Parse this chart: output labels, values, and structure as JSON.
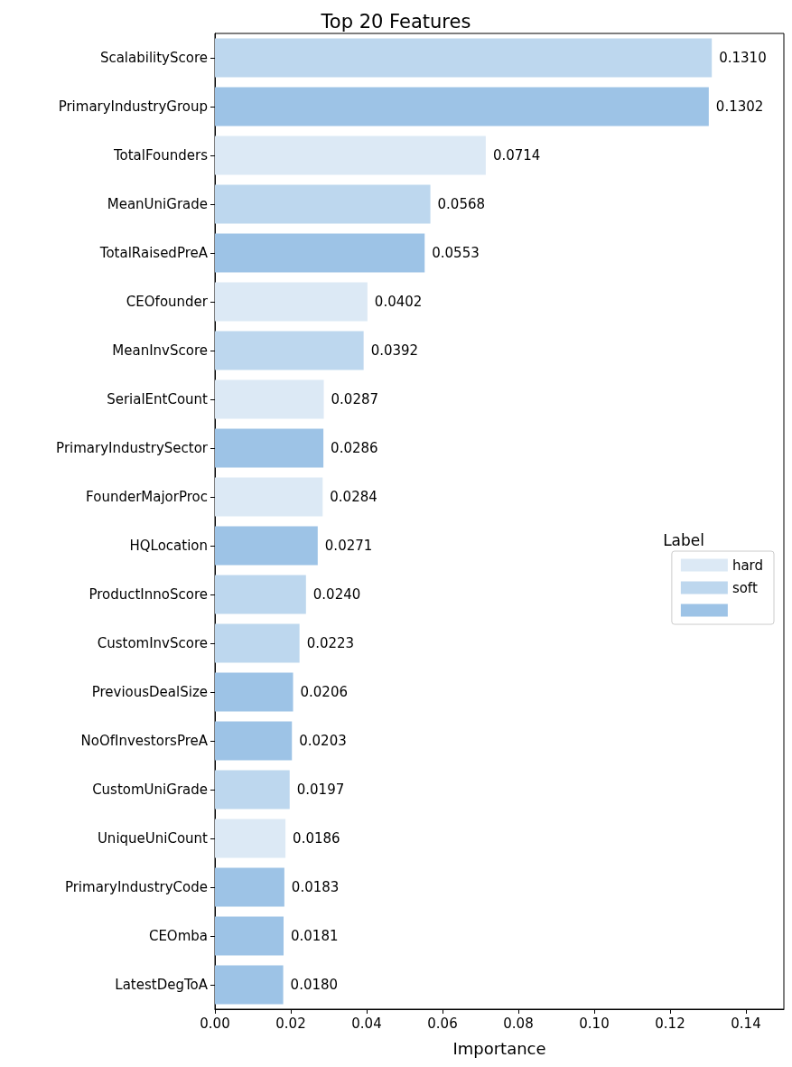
{
  "chart_data": {
    "type": "bar",
    "orientation": "horizontal",
    "stacked": true,
    "title": "Top 20 Features",
    "xlabel": "Importance",
    "legend_title": "Label",
    "legend": "right",
    "grid": false,
    "categories": [
      "ScalabilityScore",
      "PrimaryIndustryGroup",
      "TotalFounders",
      "MeanUniGrade",
      "TotalRaisedPreA",
      "CEOfounder",
      "MeanInvScore",
      "SerialEntCount",
      "PrimaryIndustrySector",
      "FounderMajorProc",
      "HQLocation",
      "ProductInnoScore",
      "CustomInvScore",
      "PreviousDealSize",
      "NoOfInvestorsPreA",
      "CustomUniGrade",
      "UniqueUniCount",
      "PrimaryIndustryCode",
      "CEOmba",
      "LatestDegToA"
    ],
    "xlim": [
      0,
      0.15
    ],
    "xticks": [
      {
        "value": 0,
        "label": "0.00"
      },
      {
        "value": 0.02,
        "label": "0.02"
      },
      {
        "value": 0.04,
        "label": "0.04"
      },
      {
        "value": 0.06,
        "label": "0.06"
      },
      {
        "value": 0.08,
        "label": "0.08"
      },
      {
        "value": 0.1,
        "label": "0.10"
      },
      {
        "value": 0.12,
        "label": "0.12"
      },
      {
        "value": 0.14,
        "label": "0.14"
      }
    ],
    "series": [
      {
        "name": "hard",
        "color": "#dce9f5",
        "values": [
          null,
          null,
          0.0714,
          null,
          null,
          0.0402,
          null,
          0.0287,
          null,
          0.0284,
          null,
          null,
          null,
          null,
          null,
          null,
          0.0186,
          null,
          null,
          null
        ],
        "value_labels": [
          null,
          null,
          "0.0714",
          null,
          null,
          "0.0402",
          null,
          "0.0287",
          null,
          "0.0284",
          null,
          null,
          null,
          null,
          null,
          null,
          "0.0186",
          null,
          null,
          null
        ]
      },
      {
        "name": "soft",
        "color": "#bdd7ee",
        "values": [
          0.131,
          null,
          null,
          0.0568,
          null,
          null,
          0.0392,
          null,
          null,
          null,
          null,
          0.024,
          0.0223,
          null,
          null,
          0.0197,
          null,
          null,
          null,
          null
        ],
        "value_labels": [
          "0.1310",
          null,
          null,
          "0.0568",
          null,
          null,
          "0.0392",
          null,
          null,
          null,
          null,
          "0.0240",
          "0.0223",
          null,
          null,
          "0.0197",
          null,
          null,
          null,
          null
        ]
      },
      {
        "color": "#9dc3e6",
        "values": [
          null,
          0.1302,
          null,
          null,
          0.0553,
          null,
          null,
          null,
          0.0286,
          null,
          0.0271,
          null,
          null,
          0.0206,
          0.0203,
          null,
          null,
          0.0183,
          0.0181,
          0.018
        ],
        "value_labels": [
          null,
          "0.1302",
          null,
          null,
          "0.0553",
          null,
          null,
          null,
          "0.0286",
          null,
          "0.0271",
          null,
          null,
          "0.0206",
          "0.0203",
          null,
          null,
          "0.0183",
          "0.0181",
          "0.0180"
        ]
      }
    ]
  }
}
